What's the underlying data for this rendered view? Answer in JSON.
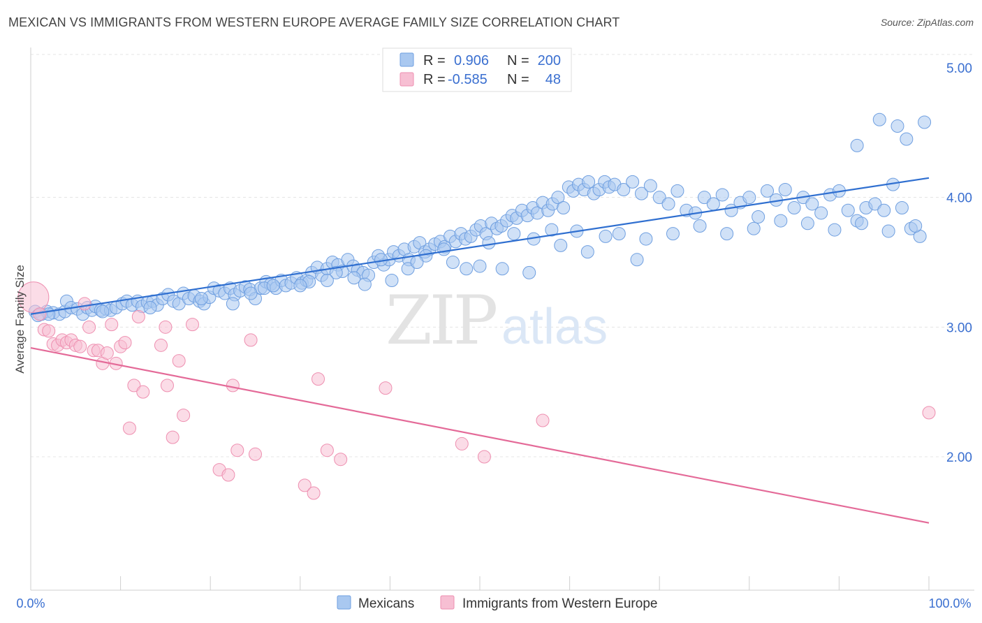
{
  "header": {
    "title": "MEXICAN VS IMMIGRANTS FROM WESTERN EUROPE AVERAGE FAMILY SIZE CORRELATION CHART",
    "source": "Source: ZipAtlas.com"
  },
  "watermark": {
    "part1": "ZIP",
    "part2": "atlas"
  },
  "legend_top": {
    "r_label": "R =",
    "n_label": "N =",
    "rows": [
      {
        "r": "0.906",
        "n": "200"
      },
      {
        "r": "-0.585",
        "n": "48"
      }
    ]
  },
  "legend_bottom": {
    "items": [
      "Mexicans",
      "Immigrants from Western Europe"
    ]
  },
  "colors": {
    "blue_fill": "#a9c8f0",
    "blue_stroke": "#6f9fe0",
    "blue_line": "#2f6fd0",
    "pink_fill": "#f7bfd3",
    "pink_stroke": "#ee8fb0",
    "pink_line": "#e46a98",
    "accent_text": "#3a6fd0"
  },
  "chart_data": {
    "type": "scatter",
    "title": "MEXICAN VS IMMIGRANTS FROM WESTERN EUROPE AVERAGE FAMILY SIZE CORRELATION CHART",
    "xlabel": "",
    "ylabel": "Average Family Size",
    "xlim": [
      0,
      100
    ],
    "ylim": [
      1.0,
      5.1
    ],
    "x_tick_labels": [
      "0.0%",
      "100.0%"
    ],
    "y_ticks": [
      2.0,
      3.0,
      4.0,
      5.0
    ],
    "y_tick_labels": [
      "2.00",
      "3.00",
      "4.00",
      "5.00"
    ],
    "grid": true,
    "legend_position": "top-center",
    "series": [
      {
        "name": "Mexicans",
        "r": 0.906,
        "n": 200,
        "trend": {
          "x": [
            0,
            100
          ],
          "y": [
            3.1,
            4.15
          ]
        },
        "points": [
          [
            0.5,
            3.12
          ],
          [
            1.2,
            3.1
          ],
          [
            1.8,
            3.12
          ],
          [
            2.5,
            3.11
          ],
          [
            3.2,
            3.1
          ],
          [
            3.8,
            3.12
          ],
          [
            4.0,
            3.2
          ],
          [
            4.5,
            3.15
          ],
          [
            5.2,
            3.14
          ],
          [
            5.8,
            3.1
          ],
          [
            6.3,
            3.15
          ],
          [
            6.8,
            3.13
          ],
          [
            7.2,
            3.16
          ],
          [
            7.8,
            3.13
          ],
          [
            8.4,
            3.14
          ],
          [
            8.9,
            3.13
          ],
          [
            9.5,
            3.15
          ],
          [
            10.2,
            3.18
          ],
          [
            10.7,
            3.2
          ],
          [
            11.3,
            3.17
          ],
          [
            11.9,
            3.2
          ],
          [
            12.4,
            3.16
          ],
          [
            13.0,
            3.19
          ],
          [
            13.6,
            3.2
          ],
          [
            14.1,
            3.17
          ],
          [
            14.7,
            3.22
          ],
          [
            15.3,
            3.25
          ],
          [
            15.9,
            3.2
          ],
          [
            16.5,
            3.18
          ],
          [
            17.0,
            3.26
          ],
          [
            17.6,
            3.22
          ],
          [
            18.2,
            3.24
          ],
          [
            18.8,
            3.2
          ],
          [
            19.3,
            3.18
          ],
          [
            19.9,
            3.23
          ],
          [
            20.4,
            3.3
          ],
          [
            21.0,
            3.28
          ],
          [
            21.6,
            3.26
          ],
          [
            22.2,
            3.3
          ],
          [
            22.7,
            3.25
          ],
          [
            23.3,
            3.28
          ],
          [
            23.9,
            3.31
          ],
          [
            24.4,
            3.29
          ],
          [
            25.0,
            3.22
          ],
          [
            25.6,
            3.3
          ],
          [
            26.2,
            3.35
          ],
          [
            26.7,
            3.33
          ],
          [
            27.3,
            3.3
          ],
          [
            27.9,
            3.36
          ],
          [
            28.4,
            3.32
          ],
          [
            29.0,
            3.34
          ],
          [
            29.6,
            3.38
          ],
          [
            30.2,
            3.34
          ],
          [
            30.7,
            3.36
          ],
          [
            31.3,
            3.42
          ],
          [
            31.9,
            3.46
          ],
          [
            32.4,
            3.4
          ],
          [
            33.0,
            3.45
          ],
          [
            33.6,
            3.5
          ],
          [
            34.2,
            3.48
          ],
          [
            34.7,
            3.43
          ],
          [
            35.3,
            3.52
          ],
          [
            35.9,
            3.47
          ],
          [
            36.4,
            3.44
          ],
          [
            37.0,
            3.42
          ],
          [
            37.6,
            3.4
          ],
          [
            38.2,
            3.5
          ],
          [
            38.7,
            3.55
          ],
          [
            39.3,
            3.48
          ],
          [
            39.9,
            3.52
          ],
          [
            40.4,
            3.58
          ],
          [
            41.0,
            3.55
          ],
          [
            41.6,
            3.6
          ],
          [
            42.1,
            3.52
          ],
          [
            42.7,
            3.62
          ],
          [
            43.3,
            3.65
          ],
          [
            43.9,
            3.58
          ],
          [
            44.4,
            3.6
          ],
          [
            45.0,
            3.64
          ],
          [
            45.6,
            3.66
          ],
          [
            46.1,
            3.62
          ],
          [
            46.7,
            3.7
          ],
          [
            47.3,
            3.66
          ],
          [
            47.9,
            3.72
          ],
          [
            48.4,
            3.68
          ],
          [
            49.0,
            3.7
          ],
          [
            49.6,
            3.75
          ],
          [
            50.1,
            3.78
          ],
          [
            50.7,
            3.72
          ],
          [
            51.3,
            3.8
          ],
          [
            51.9,
            3.76
          ],
          [
            52.4,
            3.78
          ],
          [
            53.0,
            3.82
          ],
          [
            53.6,
            3.86
          ],
          [
            54.1,
            3.84
          ],
          [
            54.7,
            3.9
          ],
          [
            55.3,
            3.86
          ],
          [
            55.9,
            3.92
          ],
          [
            56.4,
            3.88
          ],
          [
            57.0,
            3.96
          ],
          [
            57.6,
            3.9
          ],
          [
            58.1,
            3.95
          ],
          [
            58.7,
            4.0
          ],
          [
            59.3,
            3.92
          ],
          [
            59.9,
            4.08
          ],
          [
            60.4,
            4.05
          ],
          [
            61.0,
            4.1
          ],
          [
            61.6,
            4.06
          ],
          [
            62.1,
            4.12
          ],
          [
            62.7,
            4.03
          ],
          [
            63.3,
            4.06
          ],
          [
            63.9,
            4.12
          ],
          [
            64.4,
            4.08
          ],
          [
            65.0,
            4.1
          ],
          [
            66.0,
            4.06
          ],
          [
            67.0,
            4.12
          ],
          [
            68.0,
            4.03
          ],
          [
            69.0,
            4.09
          ],
          [
            70.0,
            4.0
          ],
          [
            71.0,
            3.95
          ],
          [
            72.0,
            4.05
          ],
          [
            73.0,
            3.9
          ],
          [
            74.0,
            3.88
          ],
          [
            75.0,
            4.0
          ],
          [
            76.0,
            3.95
          ],
          [
            77.0,
            4.02
          ],
          [
            78.0,
            3.9
          ],
          [
            79.0,
            3.96
          ],
          [
            80.0,
            4.0
          ],
          [
            81.0,
            3.85
          ],
          [
            82.0,
            4.05
          ],
          [
            83.0,
            3.98
          ],
          [
            84.0,
            4.06
          ],
          [
            85.0,
            3.92
          ],
          [
            86.0,
            4.0
          ],
          [
            87.0,
            3.95
          ],
          [
            88.0,
            3.88
          ],
          [
            89.0,
            4.02
          ],
          [
            90.0,
            4.05
          ],
          [
            91.0,
            3.9
          ],
          [
            92.0,
            3.82
          ],
          [
            93.0,
            3.92
          ],
          [
            94.0,
            3.95
          ],
          [
            95.0,
            3.9
          ],
          [
            96.0,
            4.1
          ],
          [
            97.0,
            3.92
          ],
          [
            98.0,
            3.76
          ],
          [
            99.0,
            3.7
          ],
          [
            99.5,
            4.58
          ],
          [
            96.5,
            4.55
          ],
          [
            94.5,
            4.6
          ],
          [
            92.0,
            4.4
          ],
          [
            97.5,
            4.45
          ],
          [
            22.5,
            3.18
          ],
          [
            26.0,
            3.3
          ],
          [
            31.0,
            3.35
          ],
          [
            34.0,
            3.42
          ],
          [
            37.2,
            3.33
          ],
          [
            40.2,
            3.36
          ],
          [
            44.0,
            3.55
          ],
          [
            47.0,
            3.5
          ],
          [
            50.0,
            3.47
          ],
          [
            52.5,
            3.45
          ],
          [
            56.0,
            3.68
          ],
          [
            59.0,
            3.63
          ],
          [
            62.0,
            3.58
          ],
          [
            65.5,
            3.72
          ],
          [
            68.5,
            3.68
          ],
          [
            71.5,
            3.72
          ],
          [
            74.5,
            3.78
          ],
          [
            77.5,
            3.72
          ],
          [
            80.5,
            3.76
          ],
          [
            83.5,
            3.82
          ],
          [
            86.5,
            3.8
          ],
          [
            89.5,
            3.75
          ],
          [
            92.5,
            3.8
          ],
          [
            95.5,
            3.74
          ],
          [
            98.5,
            3.78
          ],
          [
            67.5,
            3.52
          ],
          [
            55.5,
            3.42
          ],
          [
            48.5,
            3.45
          ],
          [
            42.0,
            3.45
          ],
          [
            36.0,
            3.38
          ],
          [
            30.0,
            3.32
          ],
          [
            24.5,
            3.26
          ],
          [
            19.0,
            3.22
          ],
          [
            13.3,
            3.15
          ],
          [
            8.0,
            3.12
          ],
          [
            2.0,
            3.1
          ],
          [
            0.8,
            3.09
          ],
          [
            64.0,
            3.7
          ],
          [
            60.8,
            3.74
          ],
          [
            58.0,
            3.75
          ],
          [
            53.8,
            3.72
          ],
          [
            51.0,
            3.65
          ],
          [
            46.0,
            3.6
          ],
          [
            43.0,
            3.5
          ],
          [
            39.0,
            3.52
          ],
          [
            33.0,
            3.36
          ],
          [
            27.0,
            3.32
          ]
        ]
      },
      {
        "name": "Immigrants from Western Europe",
        "r": -0.585,
        "n": 48,
        "trend": {
          "x": [
            0,
            100
          ],
          "y": [
            2.84,
            1.49
          ]
        },
        "points": [
          [
            0.3,
            3.23
          ],
          [
            1.0,
            3.1
          ],
          [
            1.5,
            2.98
          ],
          [
            2.0,
            2.97
          ],
          [
            2.5,
            2.87
          ],
          [
            3.0,
            2.86
          ],
          [
            3.5,
            2.9
          ],
          [
            4.0,
            2.88
          ],
          [
            4.5,
            2.9
          ],
          [
            5.0,
            2.86
          ],
          [
            5.5,
            2.85
          ],
          [
            6.0,
            3.18
          ],
          [
            6.5,
            3.0
          ],
          [
            7.0,
            2.82
          ],
          [
            7.5,
            2.82
          ],
          [
            8.0,
            2.72
          ],
          [
            8.5,
            2.8
          ],
          [
            9.0,
            3.02
          ],
          [
            9.5,
            2.72
          ],
          [
            10.0,
            2.85
          ],
          [
            10.5,
            2.88
          ],
          [
            11.0,
            2.22
          ],
          [
            11.5,
            2.55
          ],
          [
            12.0,
            3.08
          ],
          [
            12.5,
            2.5
          ],
          [
            14.5,
            2.86
          ],
          [
            15.0,
            3.0
          ],
          [
            15.2,
            2.55
          ],
          [
            15.8,
            2.15
          ],
          [
            16.5,
            2.74
          ],
          [
            17.0,
            2.32
          ],
          [
            18.0,
            3.02
          ],
          [
            21.0,
            1.9
          ],
          [
            22.0,
            1.86
          ],
          [
            22.5,
            2.55
          ],
          [
            23.0,
            2.05
          ],
          [
            24.5,
            2.9
          ],
          [
            25.0,
            2.02
          ],
          [
            30.5,
            1.78
          ],
          [
            31.5,
            1.72
          ],
          [
            32.0,
            2.6
          ],
          [
            33.0,
            2.05
          ],
          [
            34.5,
            1.98
          ],
          [
            39.5,
            2.53
          ],
          [
            48.0,
            2.1
          ],
          [
            50.5,
            2.0
          ],
          [
            57.0,
            2.28
          ],
          [
            100.0,
            2.34
          ]
        ]
      }
    ]
  }
}
